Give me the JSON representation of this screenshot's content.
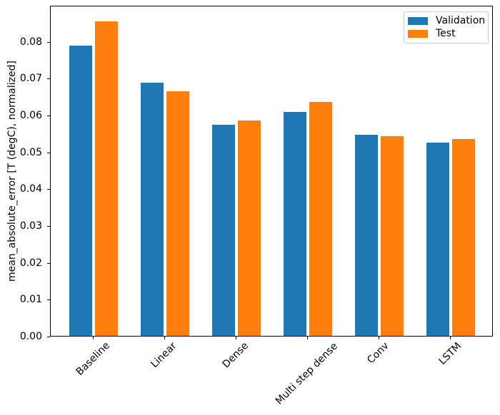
{
  "chart_data": {
    "type": "bar",
    "title": "",
    "xlabel": "",
    "ylabel": "mean_absolute_error [T (degC), normalized]",
    "categories": [
      "Baseline",
      "Linear",
      "Dense",
      "Multi step dense",
      "Conv",
      "LSTM"
    ],
    "series": [
      {
        "name": "Validation",
        "color": "#1f77b4",
        "values": [
          0.0787,
          0.0688,
          0.0573,
          0.0607,
          0.0546,
          0.0524
        ]
      },
      {
        "name": "Test",
        "color": "#ff7f0e",
        "values": [
          0.0853,
          0.0664,
          0.0584,
          0.0634,
          0.0542,
          0.0534
        ]
      }
    ],
    "ylim": [
      0,
      0.0898
    ],
    "yticks": [
      0,
      0.01,
      0.02,
      0.03,
      0.04,
      0.05,
      0.06,
      0.07,
      0.08
    ],
    "ytick_labels": [
      "0.00",
      "0.01",
      "0.02",
      "0.03",
      "0.04",
      "0.05",
      "0.06",
      "0.07",
      "0.08"
    ],
    "xtick_rotation": 45,
    "grid": false,
    "legend": {
      "position": "upper right",
      "entries": [
        "Validation",
        "Test"
      ]
    },
    "axis_color": "#000000",
    "legend_border_color": "#cccccc",
    "background_color": "#ffffff"
  }
}
